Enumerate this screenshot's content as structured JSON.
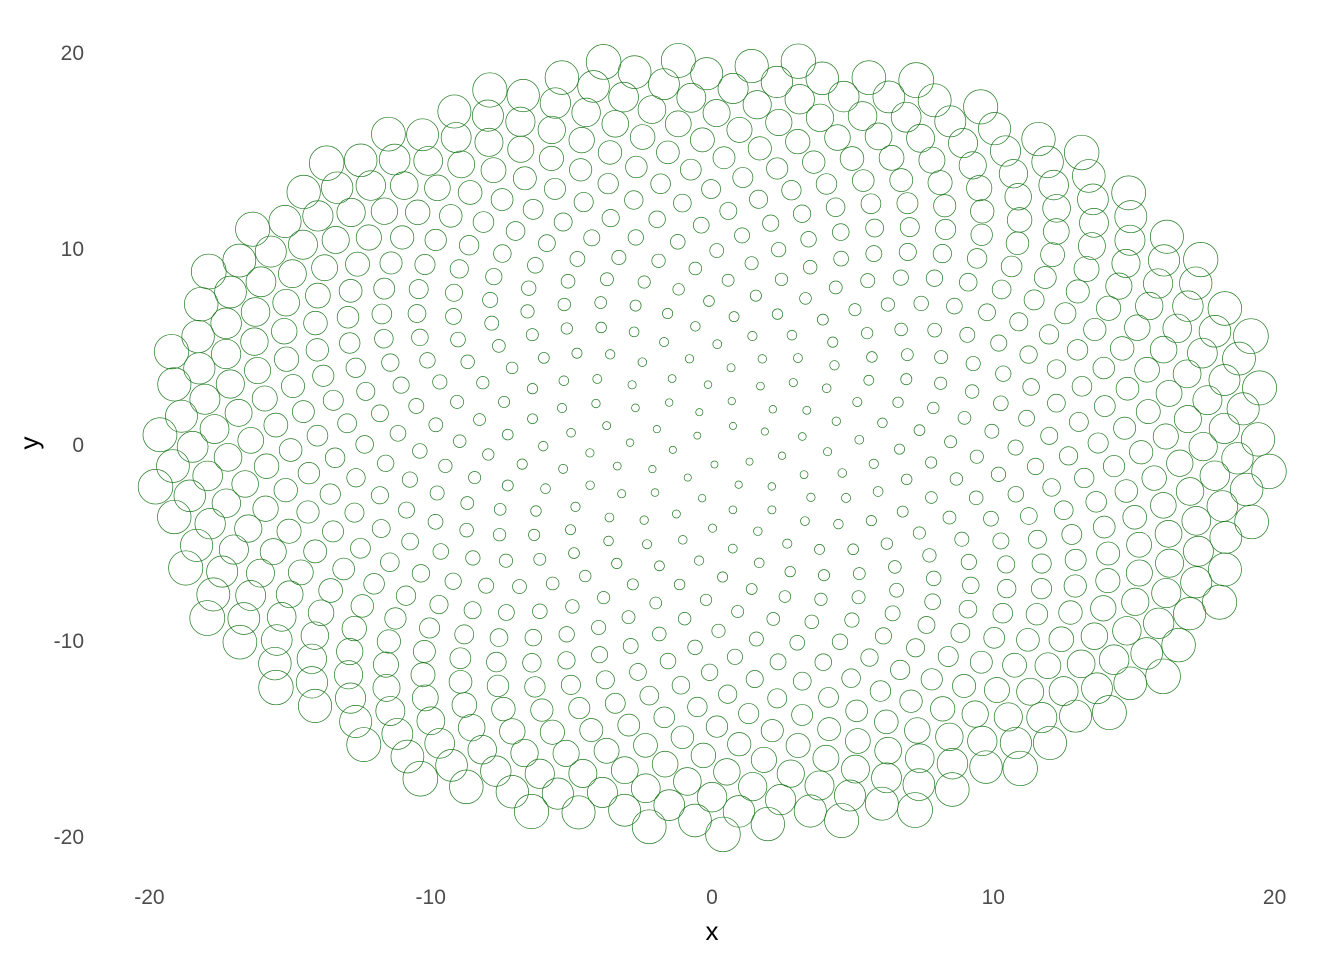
{
  "chart_data": {
    "type": "scatter",
    "title": "",
    "xlabel": "x",
    "ylabel": "y",
    "xlim": [
      -20.8,
      20.8
    ],
    "ylim": [
      -21.5,
      20.8
    ],
    "x_ticks": [
      -20,
      -10,
      0,
      10,
      20
    ],
    "y_ticks": [
      -20,
      -10,
      0,
      10,
      20
    ],
    "x_tick_labels": [
      "-20",
      "-10",
      "0",
      "10",
      "20"
    ],
    "y_tick_labels": [
      "-20",
      "-10",
      "0",
      "10",
      "20"
    ],
    "grid": false,
    "legend": "none",
    "marker": "open-circle",
    "marker_color": "#1f7a1f",
    "series": [
      {
        "description": "phyllotaxis spiral: point k has radius sqrt(k), angle k * golden angle; circle size grows with k",
        "point_count": 800,
        "golden_angle_rad": 2.399963,
        "radius_scale": 0.707
      }
    ]
  }
}
